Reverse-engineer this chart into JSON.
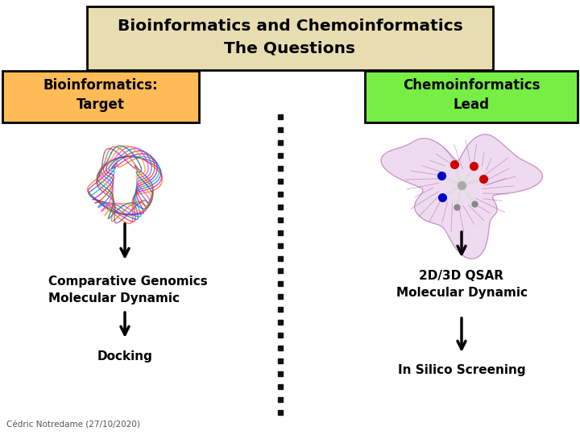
{
  "title_line1": "Bioinformatics and Chemoinformatics",
  "title_line2": "The Questions",
  "title_bg": "#e8ddb0",
  "title_border": "#000000",
  "left_label": "Bioinformatics:\nTarget",
  "left_label_bg": "#ffbb55",
  "left_label_border": "#000000",
  "right_label": "Chemoinformatics\nLead",
  "right_label_bg": "#77ee44",
  "right_label_border": "#000000",
  "left_text1": "Comparative Genomics\nMolecular Dynamic",
  "left_text2": "Docking",
  "right_text1": "2D/3D QSAR\nMolecular Dynamic",
  "right_text2": "In Silico Screening",
  "footer": "Cédric Notredame (27/10/2020)",
  "bg_color": "#ffffff",
  "font_color": "#000000",
  "divider_color": "#111111"
}
